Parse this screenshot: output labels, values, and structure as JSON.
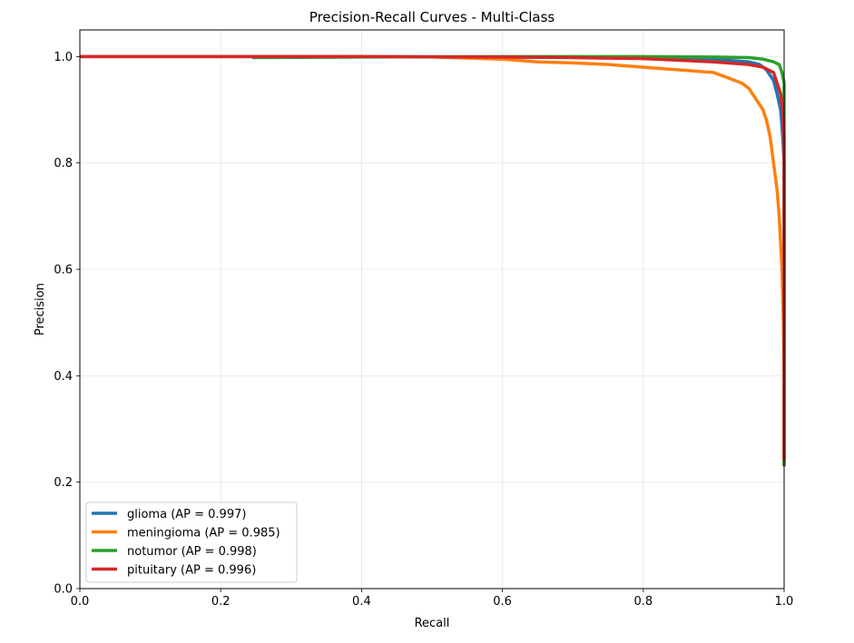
{
  "chart_data": {
    "type": "line",
    "title": "Precision-Recall Curves - Multi-Class",
    "xlabel": "Recall",
    "ylabel": "Precision",
    "xlim": [
      0,
      1
    ],
    "ylim": [
      0,
      1.05
    ],
    "xticks": [
      "0.0",
      "0.2",
      "0.4",
      "0.6",
      "0.8",
      "1.0"
    ],
    "yticks": [
      "0.0",
      "0.2",
      "0.4",
      "0.6",
      "0.8",
      "1.0"
    ],
    "grid": true,
    "legend_position": "lower-left",
    "series": [
      {
        "name": "glioma (AP = 0.997)",
        "color": "#1f77b4",
        "x": [
          0.0,
          0.2,
          0.4,
          0.6,
          0.8,
          0.9,
          0.95,
          0.965,
          0.975,
          0.985,
          0.99,
          0.995,
          0.998,
          1.0,
          1.0
        ],
        "y": [
          1.0,
          1.0,
          1.0,
          0.999,
          0.998,
          0.995,
          0.99,
          0.985,
          0.975,
          0.955,
          0.93,
          0.9,
          0.85,
          0.8,
          0.23
        ]
      },
      {
        "name": "meningioma (AP = 0.985)",
        "color": "#ff7f0e",
        "x": [
          0.0,
          0.3,
          0.5,
          0.6,
          0.65,
          0.7,
          0.75,
          0.8,
          0.85,
          0.9,
          0.92,
          0.94,
          0.95,
          0.96,
          0.97,
          0.975,
          0.98,
          0.985,
          0.99,
          0.993,
          0.995,
          0.997,
          0.999,
          1.0,
          1.0
        ],
        "y": [
          1.0,
          1.0,
          0.999,
          0.995,
          0.99,
          0.988,
          0.985,
          0.98,
          0.975,
          0.97,
          0.96,
          0.95,
          0.94,
          0.92,
          0.9,
          0.88,
          0.85,
          0.8,
          0.75,
          0.7,
          0.65,
          0.6,
          0.5,
          0.4,
          0.23
        ]
      },
      {
        "name": "notumor (AP = 0.998)",
        "color": "#2ca02c",
        "x": [
          0.245,
          0.4,
          0.6,
          0.8,
          0.9,
          0.95,
          0.97,
          0.985,
          0.993,
          0.997,
          1.0,
          1.0
        ],
        "y": [
          0.998,
          0.999,
          1.0,
          1.0,
          0.999,
          0.998,
          0.995,
          0.99,
          0.985,
          0.97,
          0.95,
          0.23
        ]
      },
      {
        "name": "pituitary (AP = 0.996)",
        "color": "#d62728",
        "x": [
          0.0,
          0.2,
          0.4,
          0.6,
          0.7,
          0.8,
          0.9,
          0.95,
          0.97,
          0.985,
          0.99,
          0.995,
          0.998,
          1.0,
          1.0
        ],
        "y": [
          1.0,
          1.0,
          1.0,
          0.999,
          0.998,
          0.996,
          0.99,
          0.985,
          0.98,
          0.97,
          0.95,
          0.93,
          0.9,
          0.85,
          0.24
        ]
      }
    ]
  }
}
